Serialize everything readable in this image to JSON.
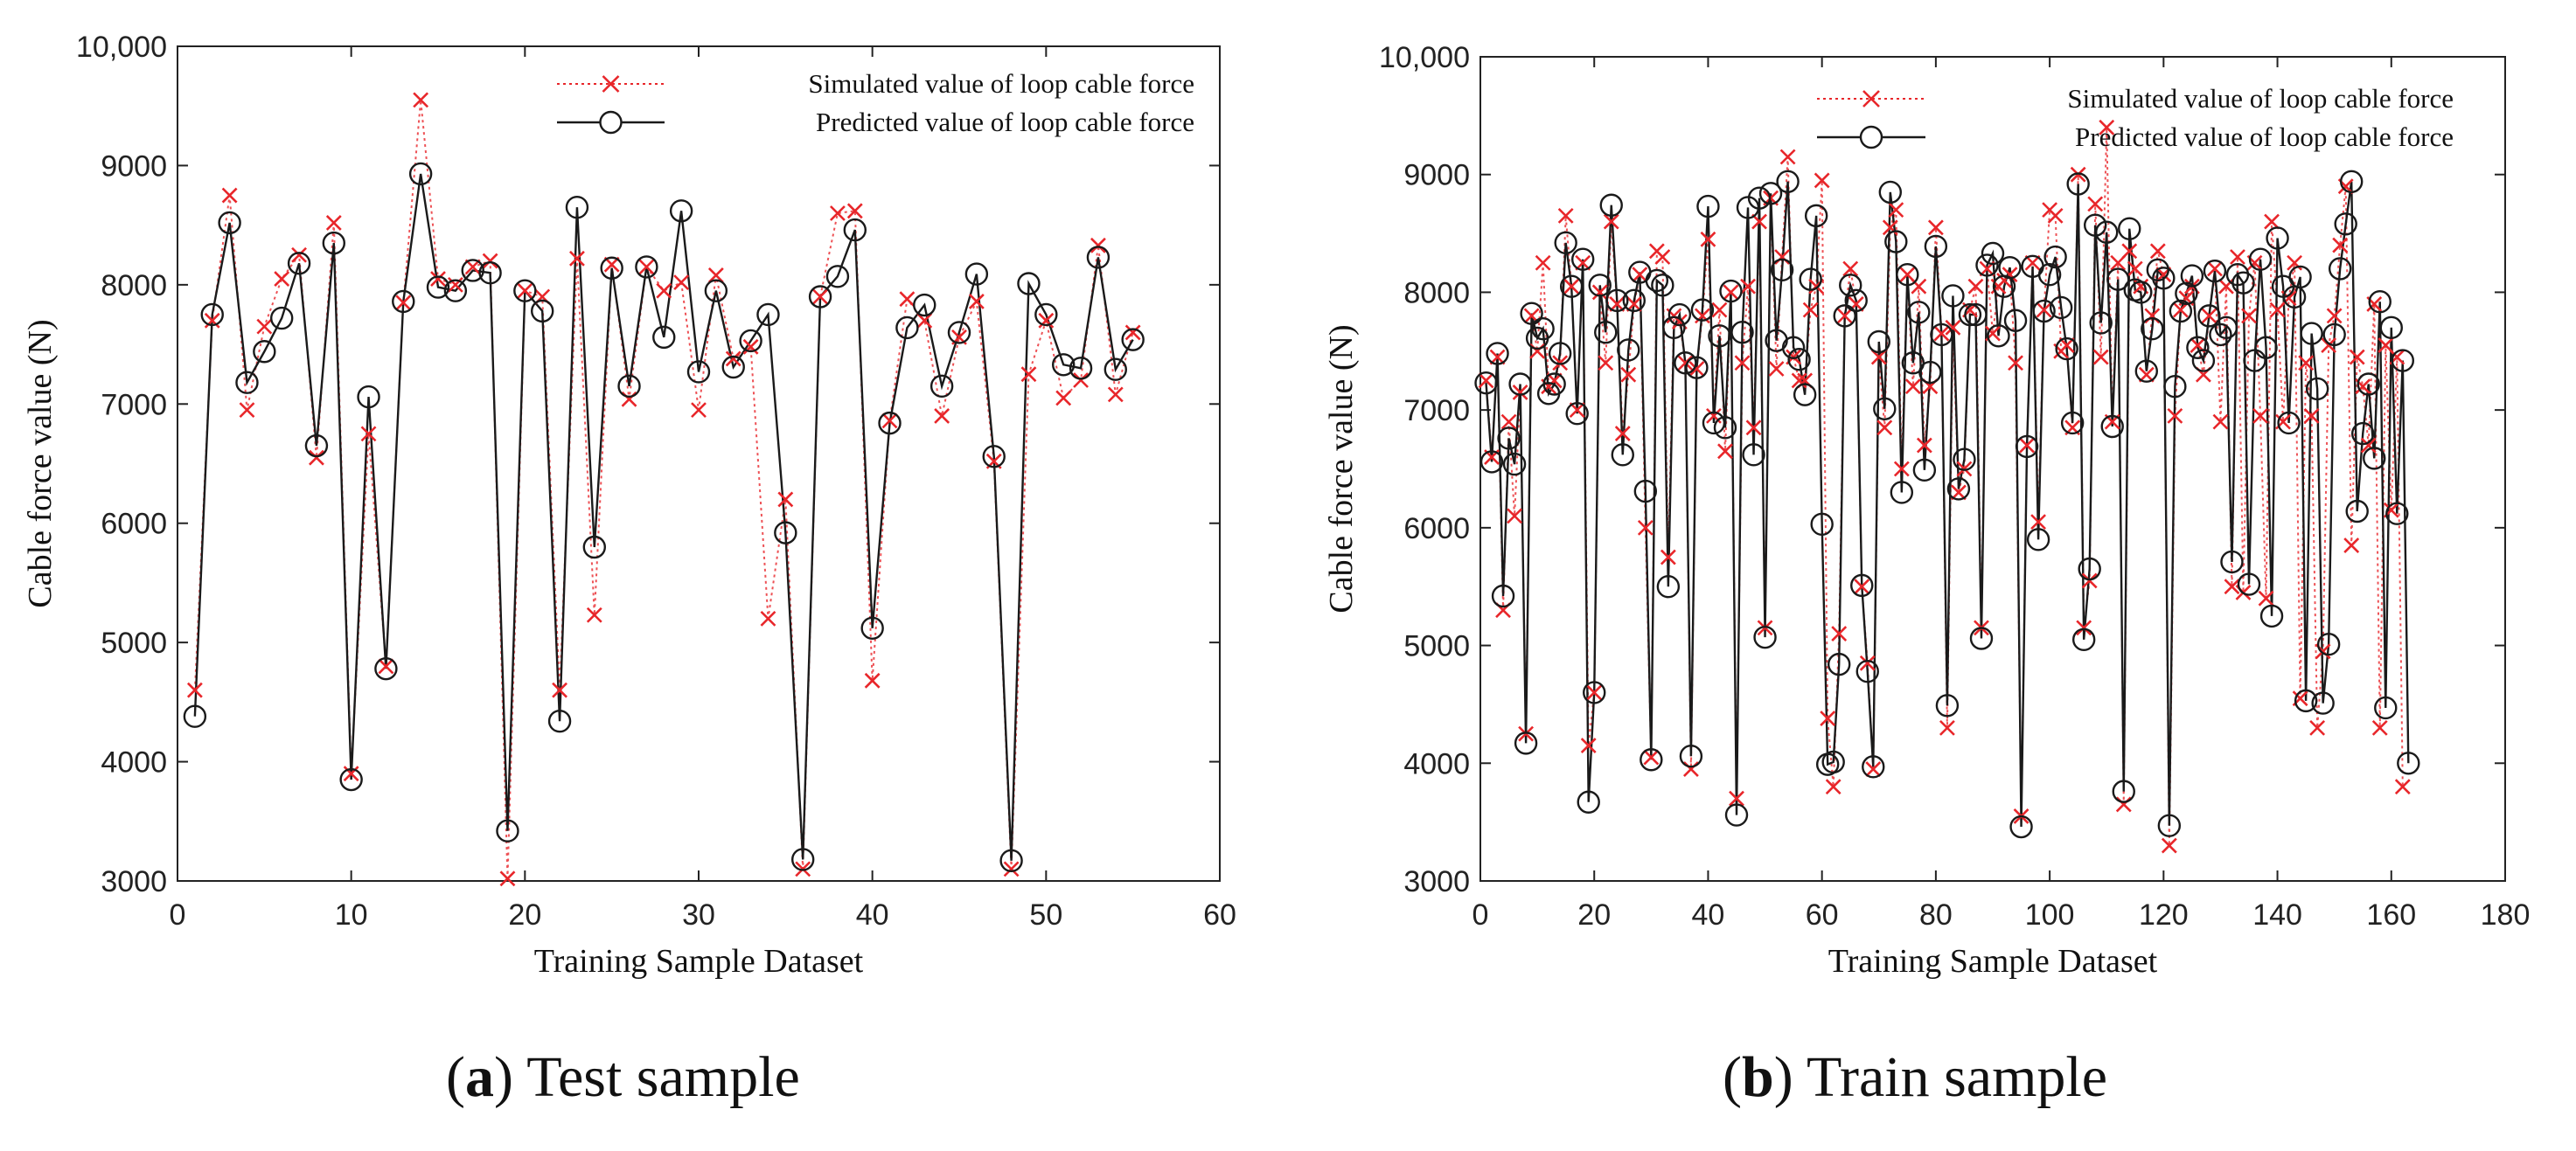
{
  "colors": {
    "simulated": "#e8262a",
    "predicted": "#1a1a1a",
    "axis": "#222222"
  },
  "chart_data": [
    {
      "type": "line",
      "caption_letter": "a",
      "caption_text": "Test sample",
      "xlabel": "Training Sample Dataset",
      "ylabel": "Cable force value (N)",
      "xlim": [
        0,
        60
      ],
      "ylim": [
        3000,
        10000
      ],
      "xticks": [
        0,
        10,
        20,
        30,
        40,
        50,
        60
      ],
      "yticks": [
        3000,
        4000,
        5000,
        6000,
        7000,
        8000,
        9000,
        10000
      ],
      "ytick_labels": [
        "3000",
        "4000",
        "5000",
        "6000",
        "7000",
        "8000",
        "9000",
        "10,000"
      ],
      "legend": [
        "Simulated value of loop cable force",
        "Predicted value of loop cable force"
      ],
      "legend_placement": "top-right",
      "series": [
        {
          "name": "Simulated value of loop cable force",
          "marker": "x",
          "style": "dotted",
          "values": [
            4600,
            7700,
            8750,
            6950,
            7650,
            8050,
            8250,
            6550,
            8520,
            3900,
            6750,
            4800,
            7850,
            9550,
            8050,
            8000,
            8150,
            8200,
            3020,
            7950,
            7900,
            4600,
            8220,
            5230,
            8170,
            7040,
            8150,
            7950,
            8020,
            6950,
            8080,
            7380,
            7480,
            5200,
            6200,
            3100,
            7900,
            8600,
            8620,
            4680,
            6860,
            7880,
            7700,
            6900,
            7560,
            7860,
            6520,
            3100,
            7250,
            7700,
            7050,
            7200,
            8330,
            7080,
            7600
          ]
        },
        {
          "name": "Predicted value of loop cable force",
          "marker": "o",
          "style": "solid",
          "values": [
            4380,
            7750,
            8520,
            7180,
            7440,
            7720,
            8180,
            6650,
            8350,
            3850,
            7060,
            4780,
            7860,
            8930,
            7980,
            7950,
            8120,
            8100,
            3420,
            7950,
            7780,
            4340,
            8650,
            5800,
            8140,
            7150,
            8150,
            7560,
            8620,
            7270,
            7950,
            7310,
            7530,
            7750,
            5920,
            3180,
            7900,
            8070,
            8460,
            5120,
            6840,
            7640,
            7830,
            7150,
            7600,
            8090,
            6560,
            3170,
            8010,
            7750,
            7330,
            7300,
            8230,
            7290,
            7540
          ]
        }
      ]
    },
    {
      "type": "line",
      "caption_letter": "b",
      "caption_text": "Train sample",
      "xlabel": "Training Sample Dataset",
      "ylabel": "Cable force value (N)",
      "xlim": [
        0,
        180
      ],
      "ylim": [
        3000,
        10000
      ],
      "xticks": [
        0,
        20,
        40,
        60,
        80,
        100,
        120,
        140,
        160,
        180
      ],
      "yticks": [
        3000,
        4000,
        5000,
        6000,
        7000,
        8000,
        9000,
        10000
      ],
      "ytick_labels": [
        "3000",
        "4000",
        "5000",
        "6000",
        "7000",
        "8000",
        "9000",
        "10,000"
      ],
      "legend": [
        "Simulated value of loop cable force",
        "Predicted value of loop cable force"
      ],
      "legend_placement": "top-right",
      "series": [
        {
          "name": "Simulated value of loop cable force",
          "marker": "x",
          "style": "dotted",
          "values": [
            7250,
            6600,
            7450,
            5300,
            6900,
            6100,
            7150,
            4250,
            7800,
            7500,
            8250,
            7200,
            7250,
            7400,
            8650,
            8050,
            7000,
            8250,
            4150,
            4600,
            8000,
            7400,
            8600,
            7900,
            6800,
            7300,
            7900,
            8150,
            6000,
            4050,
            8350,
            8300,
            5750,
            7800,
            7750,
            7400,
            3950,
            7350,
            7800,
            8450,
            6950,
            7850,
            6650,
            8000,
            3700,
            7400,
            8050,
            6850,
            8600,
            5150,
            8800,
            7350,
            8300,
            9150,
            7450,
            7250,
            7250,
            7850,
            8050,
            8950,
            4380,
            3800,
            5100,
            7800,
            8200,
            7900,
            5500,
            4850,
            3950,
            7450,
            6850,
            8550,
            8700,
            6500,
            8150,
            7200,
            8050,
            6700,
            7200,
            8550,
            7650,
            4300,
            7700,
            6300,
            6500,
            7850,
            8050,
            5150,
            8200,
            7650,
            8050,
            8100,
            8150,
            7400,
            3550,
            6700,
            8250,
            6050,
            7850,
            8700,
            8650,
            7500,
            7550,
            6850,
            9000,
            5150,
            5550,
            8750,
            7450,
            9400,
            6900,
            8250,
            3650,
            8350,
            8200,
            8050,
            7300,
            7800,
            8350,
            8150,
            3300,
            6950,
            7850,
            7950,
            8050,
            7550,
            7300,
            7800,
            8200,
            6900,
            8050,
            5500,
            8300,
            5450,
            7800,
            8250,
            6950,
            5400,
            8600,
            7850,
            6900,
            7950,
            8250,
            4550,
            7400,
            6950,
            4300,
            4950,
            7550,
            7800,
            8400,
            8900,
            5850,
            7450,
            7200,
            6700,
            7900,
            4300,
            7550,
            6150,
            7450,
            3800
          ]
        },
        {
          "name": "Predicted value of loop cable force",
          "marker": "o",
          "style": "solid",
          "values": [
            7230,
            6560,
            7480,
            5420,
            6760,
            6540,
            7220,
            4170,
            7820,
            7610,
            7690,
            7140,
            7220,
            7480,
            8420,
            8050,
            6970,
            8280,
            3670,
            4600,
            8060,
            7660,
            8740,
            7930,
            6620,
            7510,
            7930,
            8170,
            6310,
            4030,
            8100,
            8060,
            5500,
            7700,
            7810,
            7400,
            4060,
            7360,
            7850,
            8730,
            6890,
            7630,
            6850,
            8010,
            3560,
            7660,
            8720,
            6620,
            8800,
            5070,
            8840,
            7590,
            8190,
            8940,
            7530,
            7430,
            7130,
            8110,
            8650,
            6030,
            3990,
            4010,
            4840,
            7800,
            8060,
            7930,
            5510,
            4780,
            3970,
            7580,
            7010,
            8850,
            8430,
            6300,
            8150,
            7400,
            7830,
            6490,
            7320,
            8390,
            7640,
            4490,
            7970,
            6330,
            6580,
            7810,
            7810,
            5060,
            8230,
            8330,
            7630,
            8050,
            8210,
            7760,
            3460,
            6690,
            8220,
            5900,
            7840,
            8150,
            8300,
            7870,
            7520,
            6890,
            8920,
            5050,
            5650,
            8570,
            7740,
            8510,
            6860,
            8110,
            3760,
            8540,
            8020,
            8000,
            7330,
            7690,
            8190,
            8120,
            3470,
            7200,
            7840,
            7990,
            8140,
            7530,
            7420,
            7800,
            8180,
            7640,
            7700,
            5710,
            8150,
            8080,
            5520,
            7420,
            8280,
            7530,
            5250,
            8460,
            8050,
            6890,
            7960,
            8130,
            4530,
            7650,
            7180,
            4510,
            5010,
            7640,
            8200,
            8580,
            8940,
            6140,
            6800,
            7220,
            6590,
            7920,
            4470,
            7700,
            6120,
            7420,
            4000
          ]
        }
      ]
    }
  ]
}
